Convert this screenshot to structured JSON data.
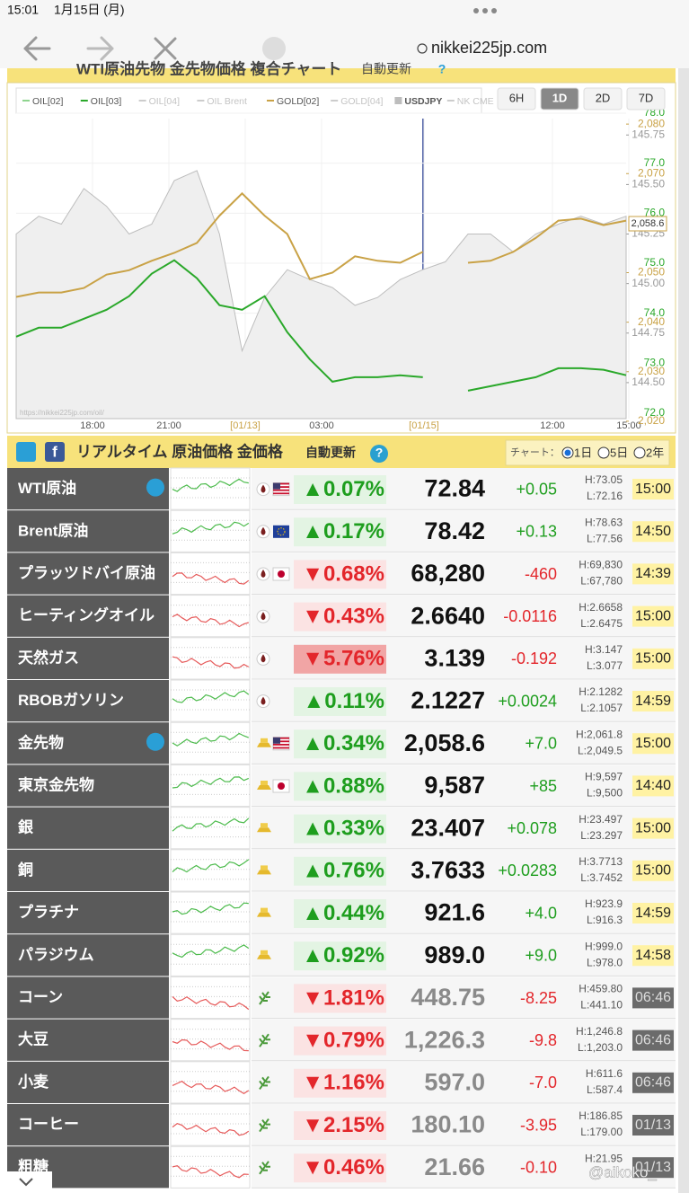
{
  "status": {
    "time": "15:01",
    "date": "1月15日 (月)"
  },
  "browser": {
    "url": "nikkei225jp.com"
  },
  "section1": {
    "title": "WTI原油先物 金先物価格 複合チャート",
    "auto": "自動更新",
    "help": "?"
  },
  "chart": {
    "type": "line",
    "series": [
      {
        "name": "OIL[02]",
        "color": "#8fd48f"
      },
      {
        "name": "OIL[03]",
        "color": "#2aa82a",
        "axis": "y",
        "values": [
          73.53,
          73.71,
          73.71,
          73.89,
          74.07,
          74.34,
          74.79,
          75.06,
          74.7,
          74.16,
          74.07,
          74.34,
          73.62,
          73.08,
          72.63,
          72.72,
          72.72,
          72.76,
          72.72,
          null,
          72.45,
          72.54,
          72.63,
          72.72,
          72.9,
          72.9,
          72.87,
          72.76
        ]
      },
      {
        "name": "OIL[04]",
        "color": "#cccccc"
      },
      {
        "name": "OIL Brent",
        "color": "#cccccc"
      },
      {
        "name": "GOLD[02]",
        "color": "#c9a246",
        "axis": "y2",
        "values": [
          2045.1,
          2046.0,
          2046.0,
          2046.9,
          2049.6,
          2050.5,
          2052.4,
          2054.0,
          2056.0,
          2061.5,
          2066.0,
          2061.5,
          2057.8,
          2048.7,
          2050.0,
          2053.3,
          2052.4,
          2052.0,
          2054.2,
          null,
          2052.0,
          2052.4,
          2054.2,
          2057.0,
          2060.5,
          2060.9,
          2059.6,
          2060.5
        ]
      },
      {
        "name": "GOLD[04]",
        "color": "#cccccc"
      },
      {
        "name": "USDJPY",
        "color": "#bdbdbd",
        "axis": "y3",
        "values": [
          145.25,
          145.34,
          145.3,
          145.48,
          145.39,
          145.25,
          145.3,
          145.52,
          145.57,
          145.25,
          144.66,
          144.93,
          145.07,
          145.02,
          144.98,
          144.89,
          144.93,
          145.02,
          145.07,
          145.11,
          145.25,
          145.25,
          145.16,
          145.25,
          145.3,
          145.34,
          145.3,
          145.34
        ]
      },
      {
        "name": "NK CME",
        "color": "#cccccc"
      }
    ],
    "ranges": [
      "6H",
      "1D",
      "2D",
      "7D"
    ],
    "selected_range": 1,
    "x_labels": [
      "18:00",
      "21:00",
      "[01/13]",
      "03:00",
      "[01/15]",
      "12:00",
      "15:00"
    ],
    "ylim": [
      71.82,
      78
    ],
    "yticks": [
      {
        "value": 78,
        "label": "78.0"
      },
      {
        "value": 77,
        "label": "77.0"
      },
      {
        "value": 76,
        "label": "76.0"
      },
      {
        "value": 75,
        "label": "75.0"
      },
      {
        "value": 74,
        "label": "74.0"
      },
      {
        "value": 73,
        "label": "73.0"
      },
      {
        "value": 72,
        "label": "72.0"
      }
    ],
    "y2lim": [
      2019.8,
      2082.2
    ],
    "y2ticks": [
      {
        "value": 2080,
        "label": "2,080"
      },
      {
        "value": 2070,
        "label": "2,070"
      },
      {
        "value": 2050,
        "label": "2,050"
      },
      {
        "value": 2040,
        "label": "2,040"
      },
      {
        "value": 2030,
        "label": "2,030"
      },
      {
        "value": 2020,
        "label": "2,020"
      }
    ],
    "y3lim": [
      144.3,
      145.86
    ],
    "y3ticks": [
      145.75,
      {
        "value": 145.5,
        "label": "145.50"
      },
      145.25,
      {
        "value": 145,
        "label": "145.00"
      },
      144.75,
      {
        "value": 144.5,
        "label": "144.50"
      }
    ],
    "last_label": "2,058.6",
    "source": "https://nikkei225jp.com/oil/",
    "grid": true
  },
  "section2": {
    "title": "リアルタイム 原油価格 金価格",
    "auto": "自動更新",
    "help": "?",
    "chart_label": "チャート：",
    "options": [
      "1日",
      "5日",
      "2年"
    ],
    "selected": 0
  },
  "table": {
    "rows": [
      {
        "name": "WTI原油",
        "change": "▲0.07%",
        "price": "72.84",
        "diff": "+0.05",
        "high": "H:73.05",
        "low": "L:72.16",
        "time": "15:00"
      },
      {
        "name": "Brent原油",
        "change": "▲0.17%",
        "price": "78.42",
        "diff": "+0.13",
        "high": "H:78.63",
        "low": "L:77.56",
        "time": "14:50"
      },
      {
        "name": "プラッツドバイ原油",
        "change": "▼0.68%",
        "price": "68,280",
        "diff": "-460",
        "high": "H:69,830",
        "low": "L:67,780",
        "time": "14:39"
      },
      {
        "name": "ヒーティングオイル",
        "change": "▼0.43%",
        "price": "2.6640",
        "diff": "-0.0116",
        "high": "H:2.6658",
        "low": "L:2.6475",
        "time": "15:00"
      },
      {
        "name": "天然ガス",
        "change": "▼5.76%",
        "price": "3.139",
        "diff": "-0.192",
        "high": "H:3.147",
        "low": "L:3.077",
        "time": "15:00",
        "highlight": true
      },
      {
        "name": "RBOBガソリン",
        "change": "▲0.11%",
        "price": "2.1227",
        "diff": "+0.0024",
        "high": "H:2.1282",
        "low": "L:2.1057",
        "time": "14:59"
      },
      {
        "name": "金先物",
        "change": "▲0.34%",
        "price": "2,058.6",
        "diff": "+7.0",
        "high": "H:2,061.8",
        "low": "L:2,049.5",
        "time": "15:00"
      },
      {
        "name": "東京金先物",
        "change": "▲0.88%",
        "price": "9,587",
        "diff": "+85",
        "high": "H:9,597",
        "low": "L:9,500",
        "time": "14:40"
      },
      {
        "name": "銀",
        "change": "▲0.33%",
        "price": "23.407",
        "diff": "+0.078",
        "high": "H:23.497",
        "low": "L:23.297",
        "time": "15:00"
      },
      {
        "name": "銅",
        "change": "▲0.76%",
        "price": "3.7633",
        "diff": "+0.0283",
        "high": "H:3.7713",
        "low": "L:3.7452",
        "time": "15:00"
      },
      {
        "name": "プラチナ",
        "change": "▲0.44%",
        "price": "921.6",
        "diff": "+4.0",
        "high": "H:923.9",
        "low": "L:916.3",
        "time": "14:59"
      },
      {
        "name": "パラジウム",
        "change": "▲0.92%",
        "price": "989.0",
        "diff": "+9.0",
        "high": "H:999.0",
        "low": "L:978.0",
        "time": "14:58"
      },
      {
        "name": "コーン",
        "change": "▼1.81%",
        "price": "448.75",
        "diff": "-8.25",
        "high": "H:459.80",
        "low": "L:441.10",
        "time": "06:46",
        "closed": true
      },
      {
        "name": "大豆",
        "change": "▼0.79%",
        "price": "1,226.3",
        "diff": "-9.8",
        "high": "H:1,246.8",
        "low": "L:1,203.0",
        "time": "06:46",
        "closed": true
      },
      {
        "name": "小麦",
        "change": "▼1.16%",
        "price": "597.0",
        "diff": "-7.0",
        "high": "H:611.6",
        "low": "L:587.4",
        "time": "06:46",
        "closed": true
      },
      {
        "name": "コーヒー",
        "change": "▼2.15%",
        "price": "180.10",
        "diff": "-3.95",
        "high": "H:186.85",
        "low": "L:179.00",
        "time": "01/13",
        "closed": true
      },
      {
        "name": "粗糖",
        "change": "▼0.46%",
        "price": "21.66",
        "diff": "-0.10",
        "high": "H:21.95",
        "time": "01/13",
        "closed": true
      }
    ]
  },
  "watermark": "@aikoko_"
}
